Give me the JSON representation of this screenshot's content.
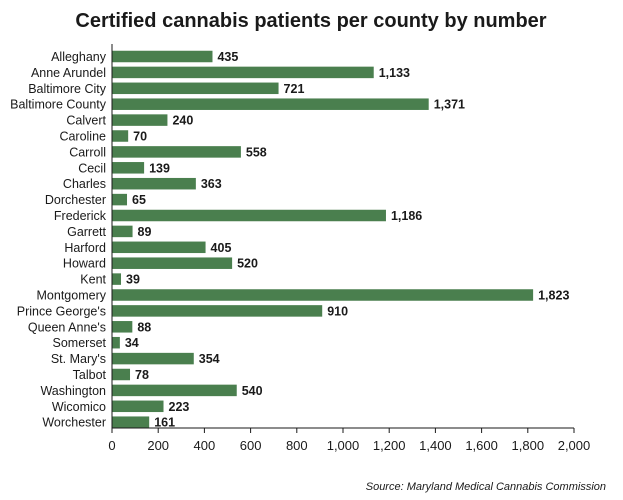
{
  "chart_data": {
    "type": "bar",
    "orientation": "horizontal",
    "title": "Certified cannabis patients  per county by number",
    "xlabel": "",
    "ylabel": "",
    "categories": [
      "Alleghany",
      "Anne Arundel",
      "Baltimore City",
      "Baltimore County",
      "Calvert",
      "Caroline",
      "Carroll",
      "Cecil",
      "Charles",
      "Dorchester",
      "Frederick",
      "Garrett",
      "Harford",
      "Howard",
      "Kent",
      "Montgomery",
      "Prince George's",
      "Queen Anne's",
      "Somerset",
      "St. Mary's",
      "Talbot",
      "Washington",
      "Wicomico",
      "Worchester"
    ],
    "values": [
      435,
      1133,
      721,
      1371,
      240,
      70,
      558,
      139,
      363,
      65,
      1186,
      89,
      405,
      520,
      39,
      1823,
      910,
      88,
      34,
      354,
      78,
      540,
      223,
      161
    ],
    "value_labels": [
      "435",
      "1,133",
      "721",
      "1,371",
      "240",
      "70",
      "558",
      "139",
      "363",
      "65",
      "1,186",
      "89",
      "405",
      "520",
      "39",
      "1,823",
      "910",
      "88",
      "34",
      "354",
      "78",
      "540",
      "223",
      "161"
    ],
    "xlim": [
      0,
      2000
    ],
    "xticks": [
      0,
      200,
      400,
      600,
      800,
      1000,
      1200,
      1400,
      1600,
      1800,
      2000
    ],
    "xtick_labels": [
      "0",
      "200",
      "400",
      "600",
      "800",
      "1,000",
      "1,200",
      "1,400",
      "1,600",
      "1,800",
      "2,000"
    ],
    "grid": false,
    "bar_color": "#4a7f4e",
    "source": "Source: Maryland Medical Cannabis Commission"
  }
}
